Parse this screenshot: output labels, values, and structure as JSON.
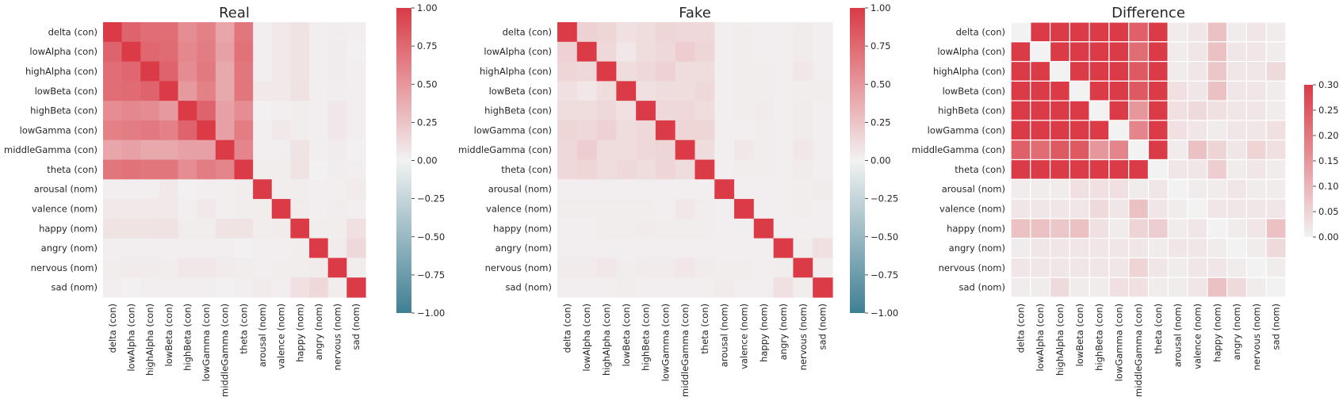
{
  "colors": {
    "neg": "#3f7f93",
    "mid": "#f2f2f2",
    "pos": "#da3b46"
  },
  "chart_data": [
    {
      "type": "heatmap",
      "title": "Real",
      "labels": [
        "delta (con)",
        "lowAlpha (con)",
        "highAlpha (con)",
        "lowBeta (con)",
        "highBeta (con)",
        "lowGamma (con)",
        "middleGamma (con)",
        "theta (con)",
        "arousal (nom)",
        "valence (nom)",
        "happy (nom)",
        "angry (nom)",
        "nervous (nom)",
        "sad (nom)"
      ],
      "vmin": -1.0,
      "vmax": 1.0,
      "colorbar_ticks": [
        "1.00",
        "0.75",
        "0.50",
        "0.25",
        "0.00",
        "−0.25",
        "−0.50",
        "−0.75",
        "−1.00"
      ],
      "grid": false,
      "values": [
        [
          1.0,
          0.78,
          0.72,
          0.72,
          0.55,
          0.62,
          0.42,
          0.68,
          0.02,
          0.05,
          0.08,
          0.02,
          0.03,
          0.02
        ],
        [
          0.78,
          1.0,
          0.76,
          0.74,
          0.58,
          0.64,
          0.44,
          0.7,
          0.02,
          0.05,
          0.08,
          0.02,
          0.04,
          0.01
        ],
        [
          0.72,
          0.76,
          1.0,
          0.78,
          0.56,
          0.66,
          0.4,
          0.68,
          0.02,
          0.05,
          0.08,
          0.02,
          0.04,
          0.02
        ],
        [
          0.72,
          0.74,
          0.78,
          1.0,
          0.48,
          0.62,
          0.4,
          0.68,
          0.05,
          0.05,
          0.09,
          0.02,
          0.03,
          0.02
        ],
        [
          0.55,
          0.58,
          0.56,
          0.48,
          1.0,
          0.78,
          0.44,
          0.55,
          0.01,
          0.02,
          0.03,
          0.02,
          0.06,
          0.02
        ],
        [
          0.62,
          0.64,
          0.66,
          0.62,
          0.78,
          1.0,
          0.44,
          0.64,
          0.02,
          0.05,
          0.03,
          0.02,
          0.06,
          0.02
        ],
        [
          0.42,
          0.44,
          0.4,
          0.4,
          0.44,
          0.44,
          1.0,
          0.6,
          0.02,
          0.02,
          0.08,
          0.02,
          0.04,
          0.01
        ],
        [
          0.68,
          0.7,
          0.68,
          0.68,
          0.55,
          0.64,
          0.6,
          1.0,
          0.03,
          0.03,
          0.08,
          0.01,
          0.03,
          0.02
        ],
        [
          0.02,
          0.02,
          0.02,
          0.05,
          0.01,
          0.02,
          0.02,
          0.03,
          1.0,
          0.03,
          0.03,
          0.02,
          0.02,
          0.04
        ],
        [
          0.05,
          0.05,
          0.05,
          0.05,
          0.02,
          0.05,
          0.02,
          0.03,
          0.03,
          1.0,
          0.04,
          0.02,
          0.03,
          0.02
        ],
        [
          0.08,
          0.08,
          0.08,
          0.09,
          0.03,
          0.03,
          0.08,
          0.08,
          0.03,
          0.04,
          1.0,
          0.03,
          0.03,
          0.1
        ],
        [
          0.02,
          0.02,
          0.02,
          0.02,
          0.02,
          0.02,
          0.02,
          0.01,
          0.02,
          0.02,
          0.03,
          1.0,
          0.04,
          0.14
        ],
        [
          0.03,
          0.04,
          0.04,
          0.03,
          0.06,
          0.06,
          0.04,
          0.03,
          0.02,
          0.03,
          0.03,
          0.04,
          1.0,
          0.03
        ],
        [
          0.02,
          0.01,
          0.02,
          0.02,
          0.02,
          0.02,
          0.01,
          0.02,
          0.04,
          0.02,
          0.1,
          0.14,
          0.03,
          1.0
        ]
      ]
    },
    {
      "type": "heatmap",
      "title": "Fake",
      "labels": [
        "delta (con)",
        "lowAlpha (con)",
        "highAlpha (con)",
        "lowBeta (con)",
        "highBeta (con)",
        "lowGamma (con)",
        "middleGamma (con)",
        "theta (con)",
        "arousal (nom)",
        "valence (nom)",
        "happy (nom)",
        "angry (nom)",
        "nervous (nom)",
        "sad (nom)"
      ],
      "vmin": -1.0,
      "vmax": 1.0,
      "colorbar_ticks": [
        "1.00",
        "0.75",
        "0.50",
        "0.25",
        "0.00",
        "−0.25",
        "−0.50",
        "−0.75",
        "−1.00"
      ],
      "grid": false,
      "values": [
        [
          1.0,
          0.18,
          0.16,
          0.1,
          0.12,
          0.16,
          0.14,
          0.14,
          0.02,
          0.03,
          0.02,
          0.02,
          0.04,
          0.02
        ],
        [
          0.18,
          1.0,
          0.14,
          0.06,
          0.12,
          0.14,
          0.2,
          0.16,
          0.02,
          0.03,
          0.02,
          0.02,
          0.04,
          0.02
        ],
        [
          0.16,
          0.14,
          1.0,
          0.12,
          0.14,
          0.18,
          0.12,
          0.12,
          0.02,
          0.03,
          0.03,
          0.02,
          0.06,
          0.02
        ],
        [
          0.1,
          0.06,
          0.12,
          1.0,
          0.1,
          0.12,
          0.12,
          0.14,
          0.02,
          0.03,
          0.03,
          0.02,
          0.03,
          0.03
        ],
        [
          0.12,
          0.12,
          0.14,
          0.1,
          1.0,
          0.14,
          0.14,
          0.12,
          0.02,
          0.03,
          0.04,
          0.02,
          0.04,
          0.02
        ],
        [
          0.16,
          0.14,
          0.18,
          0.12,
          0.14,
          1.0,
          0.16,
          0.16,
          0.02,
          0.02,
          0.03,
          0.02,
          0.04,
          0.02
        ],
        [
          0.14,
          0.2,
          0.12,
          0.12,
          0.14,
          0.16,
          1.0,
          0.12,
          0.02,
          0.06,
          0.03,
          0.02,
          0.06,
          0.02
        ],
        [
          0.14,
          0.16,
          0.12,
          0.14,
          0.12,
          0.16,
          0.12,
          1.0,
          0.02,
          0.03,
          0.03,
          0.02,
          0.04,
          0.02
        ],
        [
          0.02,
          0.02,
          0.02,
          0.02,
          0.02,
          0.02,
          0.02,
          0.02,
          1.0,
          0.02,
          0.02,
          0.02,
          0.03,
          0.04
        ],
        [
          0.03,
          0.03,
          0.03,
          0.03,
          0.03,
          0.02,
          0.06,
          0.03,
          0.02,
          1.0,
          0.02,
          0.02,
          0.03,
          0.02
        ],
        [
          0.02,
          0.02,
          0.03,
          0.03,
          0.04,
          0.03,
          0.03,
          0.03,
          0.02,
          0.02,
          1.0,
          0.02,
          0.02,
          0.02
        ],
        [
          0.02,
          0.02,
          0.02,
          0.02,
          0.02,
          0.02,
          0.02,
          0.02,
          0.02,
          0.02,
          0.02,
          1.0,
          0.03,
          0.1
        ],
        [
          0.04,
          0.04,
          0.06,
          0.03,
          0.04,
          0.04,
          0.06,
          0.04,
          0.03,
          0.03,
          0.02,
          0.03,
          1.0,
          0.03
        ],
        [
          0.02,
          0.02,
          0.02,
          0.03,
          0.02,
          0.02,
          0.02,
          0.02,
          0.04,
          0.02,
          0.02,
          0.1,
          0.03,
          1.0
        ]
      ]
    },
    {
      "type": "heatmap",
      "title": "Difference",
      "labels": [
        "delta (con)",
        "lowAlpha (con)",
        "highAlpha (con)",
        "lowBeta (con)",
        "highBeta (con)",
        "lowGamma (con)",
        "middleGamma (con)",
        "theta (con)",
        "arousal (nom)",
        "valence (nom)",
        "happy (nom)",
        "angry (nom)",
        "nervous (nom)",
        "sad (nom)"
      ],
      "vmin": 0.0,
      "vmax": 0.3,
      "colorbar_ticks": [
        "0.30",
        "0.25",
        "0.20",
        "0.15",
        "0.10",
        "0.05",
        "0.00"
      ],
      "grid": true,
      "values": [
        [
          0.0,
          0.3,
          0.3,
          0.3,
          0.3,
          0.3,
          0.24,
          0.3,
          0.01,
          0.02,
          0.08,
          0.01,
          0.02,
          0.01
        ],
        [
          0.3,
          0.0,
          0.3,
          0.3,
          0.3,
          0.3,
          0.22,
          0.3,
          0.01,
          0.02,
          0.08,
          0.02,
          0.02,
          0.01
        ],
        [
          0.3,
          0.3,
          0.0,
          0.3,
          0.3,
          0.3,
          0.25,
          0.3,
          0.01,
          0.02,
          0.07,
          0.02,
          0.02,
          0.04
        ],
        [
          0.3,
          0.3,
          0.3,
          0.0,
          0.3,
          0.3,
          0.25,
          0.3,
          0.03,
          0.02,
          0.08,
          0.02,
          0.02,
          0.01
        ],
        [
          0.3,
          0.3,
          0.3,
          0.3,
          0.0,
          0.3,
          0.15,
          0.3,
          0.03,
          0.04,
          0.03,
          0.02,
          0.02,
          0.01
        ],
        [
          0.3,
          0.3,
          0.3,
          0.3,
          0.3,
          0.0,
          0.18,
          0.3,
          0.03,
          0.02,
          0.01,
          0.02,
          0.02,
          0.03
        ],
        [
          0.24,
          0.22,
          0.25,
          0.25,
          0.15,
          0.18,
          0.0,
          0.3,
          0.01,
          0.08,
          0.05,
          0.02,
          0.05,
          0.03
        ],
        [
          0.3,
          0.3,
          0.3,
          0.3,
          0.3,
          0.3,
          0.3,
          0.0,
          0.02,
          0.02,
          0.06,
          0.01,
          0.02,
          0.01
        ],
        [
          0.01,
          0.01,
          0.01,
          0.03,
          0.03,
          0.03,
          0.01,
          0.02,
          0.0,
          0.01,
          0.01,
          0.02,
          0.01,
          0.01
        ],
        [
          0.02,
          0.02,
          0.02,
          0.02,
          0.04,
          0.02,
          0.08,
          0.02,
          0.01,
          0.0,
          0.02,
          0.02,
          0.02,
          0.02
        ],
        [
          0.08,
          0.08,
          0.07,
          0.08,
          0.03,
          0.01,
          0.05,
          0.06,
          0.01,
          0.02,
          0.0,
          0.01,
          0.02,
          0.08
        ],
        [
          0.01,
          0.02,
          0.02,
          0.02,
          0.02,
          0.02,
          0.02,
          0.01,
          0.02,
          0.02,
          0.01,
          0.0,
          0.01,
          0.04
        ],
        [
          0.02,
          0.02,
          0.02,
          0.02,
          0.02,
          0.02,
          0.05,
          0.02,
          0.01,
          0.02,
          0.02,
          0.01,
          0.0,
          0.01
        ],
        [
          0.01,
          0.01,
          0.04,
          0.01,
          0.01,
          0.03,
          0.03,
          0.01,
          0.01,
          0.02,
          0.08,
          0.04,
          0.01,
          0.0
        ]
      ]
    }
  ]
}
